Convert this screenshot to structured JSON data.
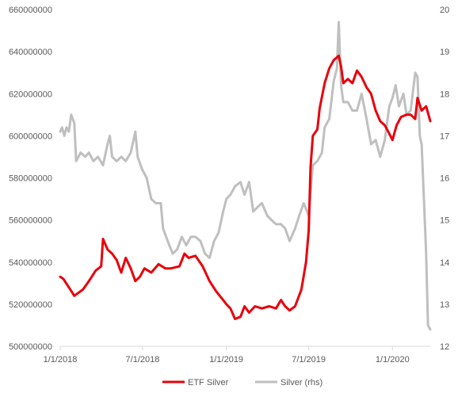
{
  "chart_data": {
    "type": "line",
    "title": "",
    "x_tick_labels": [
      "1/1/2018",
      "7/1/2018",
      "1/1/2019",
      "7/1/2019",
      "1/1/2020"
    ],
    "x_ticks": [
      "2018-01-01",
      "2018-07-01",
      "2019-01-01",
      "2019-07-01",
      "2020-01-01"
    ],
    "xlim": [
      "2018-01-01",
      "2020-03-24"
    ],
    "y_left": {
      "lim": [
        500000000,
        660000000
      ],
      "ticks": [
        500000000,
        520000000,
        540000000,
        560000000,
        580000000,
        600000000,
        620000000,
        640000000,
        660000000
      ],
      "tick_labels": [
        "500000000",
        "520000000",
        "540000000",
        "560000000",
        "580000000",
        "600000000",
        "620000000",
        "640000000",
        "660000000"
      ]
    },
    "y_right": {
      "lim": [
        12,
        20
      ],
      "ticks": [
        12,
        13,
        14,
        15,
        16,
        17,
        18,
        19,
        20
      ],
      "tick_labels": [
        "12",
        "13",
        "14",
        "15",
        "16",
        "17",
        "18",
        "19",
        "20"
      ]
    },
    "grid": false,
    "legend_position": "bottom",
    "series": [
      {
        "name": "ETF Silver",
        "axis": "left",
        "color": "#e8000b",
        "points": [
          [
            "2018-01-01",
            533000000
          ],
          [
            "2018-01-08",
            532000000
          ],
          [
            "2018-01-20",
            528000000
          ],
          [
            "2018-02-01",
            524000000
          ],
          [
            "2018-02-20",
            527000000
          ],
          [
            "2018-03-05",
            531000000
          ],
          [
            "2018-03-20",
            536000000
          ],
          [
            "2018-04-01",
            538000000
          ],
          [
            "2018-04-05",
            551000000
          ],
          [
            "2018-04-15",
            546000000
          ],
          [
            "2018-04-25",
            544000000
          ],
          [
            "2018-05-05",
            541000000
          ],
          [
            "2018-05-15",
            535000000
          ],
          [
            "2018-05-25",
            542000000
          ],
          [
            "2018-06-05",
            537000000
          ],
          [
            "2018-06-15",
            531000000
          ],
          [
            "2018-06-25",
            533000000
          ],
          [
            "2018-07-05",
            537000000
          ],
          [
            "2018-07-20",
            535000000
          ],
          [
            "2018-08-05",
            539000000
          ],
          [
            "2018-08-20",
            537000000
          ],
          [
            "2018-09-01",
            537000000
          ],
          [
            "2018-09-20",
            538000000
          ],
          [
            "2018-10-01",
            544000000
          ],
          [
            "2018-10-10",
            542000000
          ],
          [
            "2018-10-25",
            543000000
          ],
          [
            "2018-11-10",
            538000000
          ],
          [
            "2018-11-25",
            531000000
          ],
          [
            "2018-12-10",
            526000000
          ],
          [
            "2018-12-25",
            522000000
          ],
          [
            "2019-01-01",
            520000000
          ],
          [
            "2019-01-10",
            518000000
          ],
          [
            "2019-01-20",
            513000000
          ],
          [
            "2019-02-01",
            514000000
          ],
          [
            "2019-02-10",
            519000000
          ],
          [
            "2019-02-20",
            516000000
          ],
          [
            "2019-03-05",
            519000000
          ],
          [
            "2019-03-20",
            518000000
          ],
          [
            "2019-04-05",
            519000000
          ],
          [
            "2019-04-20",
            518000000
          ],
          [
            "2019-05-01",
            522000000
          ],
          [
            "2019-05-10",
            519000000
          ],
          [
            "2019-05-20",
            517000000
          ],
          [
            "2019-06-01",
            519000000
          ],
          [
            "2019-06-15",
            527000000
          ],
          [
            "2019-06-25",
            540000000
          ],
          [
            "2019-07-01",
            555000000
          ],
          [
            "2019-07-05",
            585000000
          ],
          [
            "2019-07-10",
            600000000
          ],
          [
            "2019-07-20",
            603000000
          ],
          [
            "2019-07-25",
            613000000
          ],
          [
            "2019-08-05",
            625000000
          ],
          [
            "2019-08-15",
            632000000
          ],
          [
            "2019-08-25",
            636000000
          ],
          [
            "2019-09-05",
            638000000
          ],
          [
            "2019-09-10",
            633000000
          ],
          [
            "2019-09-15",
            625000000
          ],
          [
            "2019-09-25",
            627000000
          ],
          [
            "2019-10-05",
            625000000
          ],
          [
            "2019-10-15",
            631000000
          ],
          [
            "2019-10-25",
            628000000
          ],
          [
            "2019-11-05",
            623000000
          ],
          [
            "2019-11-15",
            620000000
          ],
          [
            "2019-11-25",
            612000000
          ],
          [
            "2019-12-05",
            607000000
          ],
          [
            "2019-12-15",
            605000000
          ],
          [
            "2019-12-25",
            601000000
          ],
          [
            "2020-01-01",
            598000000
          ],
          [
            "2020-01-10",
            605000000
          ],
          [
            "2020-01-20",
            609000000
          ],
          [
            "2020-02-01",
            610000000
          ],
          [
            "2020-02-10",
            610000000
          ],
          [
            "2020-02-20",
            608000000
          ],
          [
            "2020-02-25",
            618000000
          ],
          [
            "2020-03-05",
            612000000
          ],
          [
            "2020-03-15",
            614000000
          ],
          [
            "2020-03-24",
            607000000
          ]
        ]
      },
      {
        "name": "Silver (rhs)",
        "axis": "right",
        "color": "#bfbfbf",
        "points": [
          [
            "2018-01-01",
            17.1
          ],
          [
            "2018-01-05",
            17.2
          ],
          [
            "2018-01-10",
            17.0
          ],
          [
            "2018-01-15",
            17.2
          ],
          [
            "2018-01-20",
            17.1
          ],
          [
            "2018-01-25",
            17.5
          ],
          [
            "2018-02-01",
            17.3
          ],
          [
            "2018-02-05",
            16.4
          ],
          [
            "2018-02-15",
            16.6
          ],
          [
            "2018-02-25",
            16.5
          ],
          [
            "2018-03-05",
            16.6
          ],
          [
            "2018-03-15",
            16.4
          ],
          [
            "2018-03-25",
            16.5
          ],
          [
            "2018-04-05",
            16.3
          ],
          [
            "2018-04-15",
            16.8
          ],
          [
            "2018-04-20",
            17.0
          ],
          [
            "2018-04-25",
            16.5
          ],
          [
            "2018-05-05",
            16.4
          ],
          [
            "2018-05-15",
            16.5
          ],
          [
            "2018-05-25",
            16.4
          ],
          [
            "2018-06-05",
            16.6
          ],
          [
            "2018-06-15",
            17.1
          ],
          [
            "2018-06-20",
            16.5
          ],
          [
            "2018-06-30",
            16.2
          ],
          [
            "2018-07-10",
            16.0
          ],
          [
            "2018-07-20",
            15.5
          ],
          [
            "2018-07-30",
            15.4
          ],
          [
            "2018-08-10",
            15.4
          ],
          [
            "2018-08-15",
            14.8
          ],
          [
            "2018-08-25",
            14.5
          ],
          [
            "2018-09-05",
            14.2
          ],
          [
            "2018-09-15",
            14.3
          ],
          [
            "2018-09-25",
            14.6
          ],
          [
            "2018-10-05",
            14.4
          ],
          [
            "2018-10-15",
            14.6
          ],
          [
            "2018-10-25",
            14.6
          ],
          [
            "2018-11-05",
            14.5
          ],
          [
            "2018-11-15",
            14.2
          ],
          [
            "2018-11-25",
            14.1
          ],
          [
            "2018-12-05",
            14.5
          ],
          [
            "2018-12-15",
            14.7
          ],
          [
            "2018-12-25",
            15.2
          ],
          [
            "2019-01-01",
            15.5
          ],
          [
            "2019-01-10",
            15.6
          ],
          [
            "2019-01-20",
            15.8
          ],
          [
            "2019-02-01",
            15.9
          ],
          [
            "2019-02-10",
            15.6
          ],
          [
            "2019-02-20",
            15.9
          ],
          [
            "2019-03-01",
            15.2
          ],
          [
            "2019-03-10",
            15.3
          ],
          [
            "2019-03-20",
            15.4
          ],
          [
            "2019-04-01",
            15.1
          ],
          [
            "2019-04-10",
            15.0
          ],
          [
            "2019-04-20",
            14.9
          ],
          [
            "2019-05-01",
            14.9
          ],
          [
            "2019-05-10",
            14.8
          ],
          [
            "2019-05-20",
            14.5
          ],
          [
            "2019-06-01",
            14.8
          ],
          [
            "2019-06-10",
            15.1
          ],
          [
            "2019-06-20",
            15.4
          ],
          [
            "2019-07-01",
            15.1
          ],
          [
            "2019-07-10",
            16.3
          ],
          [
            "2019-07-20",
            16.4
          ],
          [
            "2019-07-30",
            16.6
          ],
          [
            "2019-08-05",
            17.2
          ],
          [
            "2019-08-15",
            17.4
          ],
          [
            "2019-08-25",
            18.3
          ],
          [
            "2019-09-01",
            18.6
          ],
          [
            "2019-09-05",
            19.7
          ],
          [
            "2019-09-10",
            18.2
          ],
          [
            "2019-09-15",
            17.8
          ],
          [
            "2019-09-25",
            17.8
          ],
          [
            "2019-10-05",
            17.6
          ],
          [
            "2019-10-15",
            17.6
          ],
          [
            "2019-10-25",
            18.0
          ],
          [
            "2019-11-05",
            17.4
          ],
          [
            "2019-11-15",
            16.8
          ],
          [
            "2019-11-25",
            16.9
          ],
          [
            "2019-12-05",
            16.5
          ],
          [
            "2019-12-15",
            16.9
          ],
          [
            "2019-12-25",
            17.7
          ],
          [
            "2020-01-01",
            17.9
          ],
          [
            "2020-01-08",
            18.2
          ],
          [
            "2020-01-15",
            17.7
          ],
          [
            "2020-01-25",
            18.0
          ],
          [
            "2020-02-01",
            17.5
          ],
          [
            "2020-02-10",
            17.6
          ],
          [
            "2020-02-20",
            18.5
          ],
          [
            "2020-02-25",
            18.4
          ],
          [
            "2020-03-01",
            17.0
          ],
          [
            "2020-03-05",
            16.8
          ],
          [
            "2020-03-10",
            15.5
          ],
          [
            "2020-03-15",
            14.2
          ],
          [
            "2020-03-19",
            12.5
          ],
          [
            "2020-03-24",
            12.4
          ]
        ]
      }
    ]
  }
}
